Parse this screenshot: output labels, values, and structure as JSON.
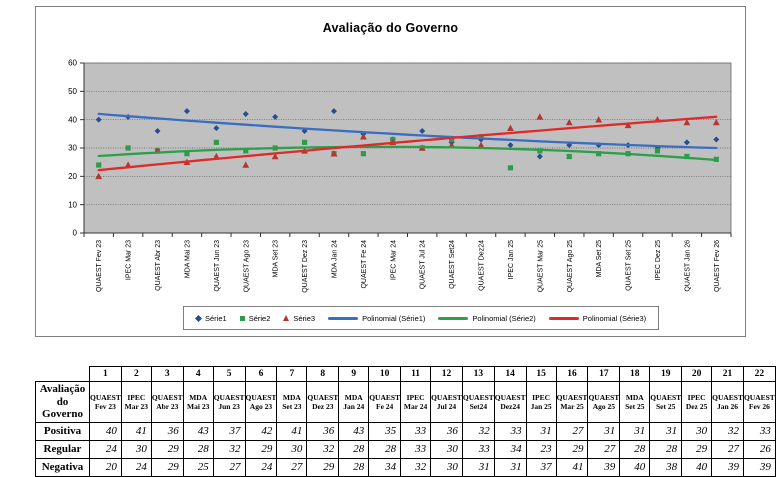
{
  "chart": {
    "title": "Avaliação do Governo",
    "plot_bg": "#c0c0c0",
    "grid_color": "#5a5a5a",
    "axis_color": "#333333",
    "legend": [
      {
        "label": "Série1",
        "marker": "diamond",
        "color": "#274e8d"
      },
      {
        "label": "Série2",
        "marker": "square",
        "color": "#2e9b4b"
      },
      {
        "label": "Série3",
        "marker": "triangle",
        "color": "#b23731"
      },
      {
        "label": "Polinomial (Série1)",
        "marker": "line",
        "color": "#3a6ec1"
      },
      {
        "label": "Polinomial (Série2)",
        "marker": "line",
        "color": "#2ca048"
      },
      {
        "label": "Polinomial (Série3)",
        "marker": "line",
        "color": "#e02a2a"
      }
    ]
  },
  "chart_data": {
    "type": "scatter",
    "title": "Avaliação do Governo",
    "trend": "polynomial-degree-2",
    "categories": [
      "QUAEST Fev 23",
      "IPEC Mar 23",
      "QUAEST Abr 23",
      "MDA Mai 23",
      "QUAEST Jun 23",
      "QUAEST Ago 23",
      "MDA Set 23",
      "QUAEST Dez 23",
      "MDA Jan 24",
      "QUAEST Fe 24",
      "IPEC Mar 24",
      "QUAEST Jul 24",
      "QUAEST Set24",
      "QUAEST Dez24",
      "IPEC Jan 25",
      "QUAEST Mar 25",
      "QUAEST Ago 25",
      "MDA Set 25",
      "QUAEST Set 25",
      "IPEC Dez 25",
      "QUAEST Jan 26",
      "QUAEST Fev 26"
    ],
    "series": [
      {
        "name": "Série1",
        "marker": "diamond",
        "marker_color": "#274e8d",
        "trend_color": "#3a6ec1",
        "values": [
          40,
          41,
          36,
          43,
          37,
          42,
          41,
          36,
          43,
          35,
          33,
          36,
          32,
          33,
          31,
          27,
          31,
          31,
          31,
          30,
          32,
          33
        ]
      },
      {
        "name": "Série2",
        "marker": "square",
        "marker_color": "#2e9b4b",
        "trend_color": "#2ca048",
        "values": [
          24,
          30,
          29,
          28,
          32,
          29,
          30,
          32,
          28,
          28,
          33,
          30,
          33,
          34,
          23,
          29,
          27,
          28,
          28,
          29,
          27,
          26
        ]
      },
      {
        "name": "Série3",
        "marker": "triangle",
        "marker_color": "#b23731",
        "trend_color": "#e02a2a",
        "values": [
          20,
          24,
          29,
          25,
          27,
          24,
          27,
          29,
          28,
          34,
          32,
          30,
          31,
          31,
          37,
          41,
          39,
          40,
          38,
          40,
          39,
          39
        ]
      }
    ],
    "ylim": [
      0,
      60
    ],
    "yticks": [
      0,
      10,
      20,
      30,
      40,
      50,
      60
    ],
    "grid": true,
    "legend_position": "bottom"
  },
  "table": {
    "corner_label": "Avaliação do Governo",
    "col_numbers": [
      "1",
      "2",
      "3",
      "4",
      "5",
      "6",
      "7",
      "8",
      "9",
      "10",
      "11",
      "12",
      "13",
      "14",
      "15",
      "16",
      "17",
      "18",
      "19",
      "20",
      "21",
      "22"
    ],
    "col_headers": [
      "QUAEST Fev 23",
      "IPEC Mar 23",
      "QUAEST Abr 23",
      "MDA Mai 23",
      "QUAEST Jun 23",
      "QUAEST Ago 23",
      "MDA Set 23",
      "QUAEST Dez 23",
      "MDA Jan 24",
      "QUAEST Fe 24",
      "IPEC Mar 24",
      "QUAEST Jul 24",
      "QUAEST Set24",
      "QUAEST Dez24",
      "IPEC Jan 25",
      "QUAEST Mar 25",
      "QUAEST Ago 25",
      "MDA Set 25",
      "QUAEST Set 25",
      "IPEC Dez 25",
      "QUAEST Jan 26",
      "QUAEST Fev 26"
    ],
    "rows": [
      {
        "label": "Positiva",
        "values": [
          40,
          41,
          36,
          43,
          37,
          42,
          41,
          36,
          43,
          35,
          33,
          36,
          32,
          33,
          31,
          27,
          31,
          31,
          31,
          30,
          32,
          33
        ]
      },
      {
        "label": "Regular",
        "values": [
          24,
          30,
          29,
          28,
          32,
          29,
          30,
          32,
          28,
          28,
          33,
          30,
          33,
          34,
          23,
          29,
          27,
          28,
          28,
          29,
          27,
          26
        ]
      },
      {
        "label": "Negativa",
        "values": [
          20,
          24,
          29,
          25,
          27,
          24,
          27,
          29,
          28,
          34,
          32,
          30,
          31,
          31,
          37,
          41,
          39,
          40,
          38,
          40,
          39,
          39
        ]
      }
    ]
  }
}
